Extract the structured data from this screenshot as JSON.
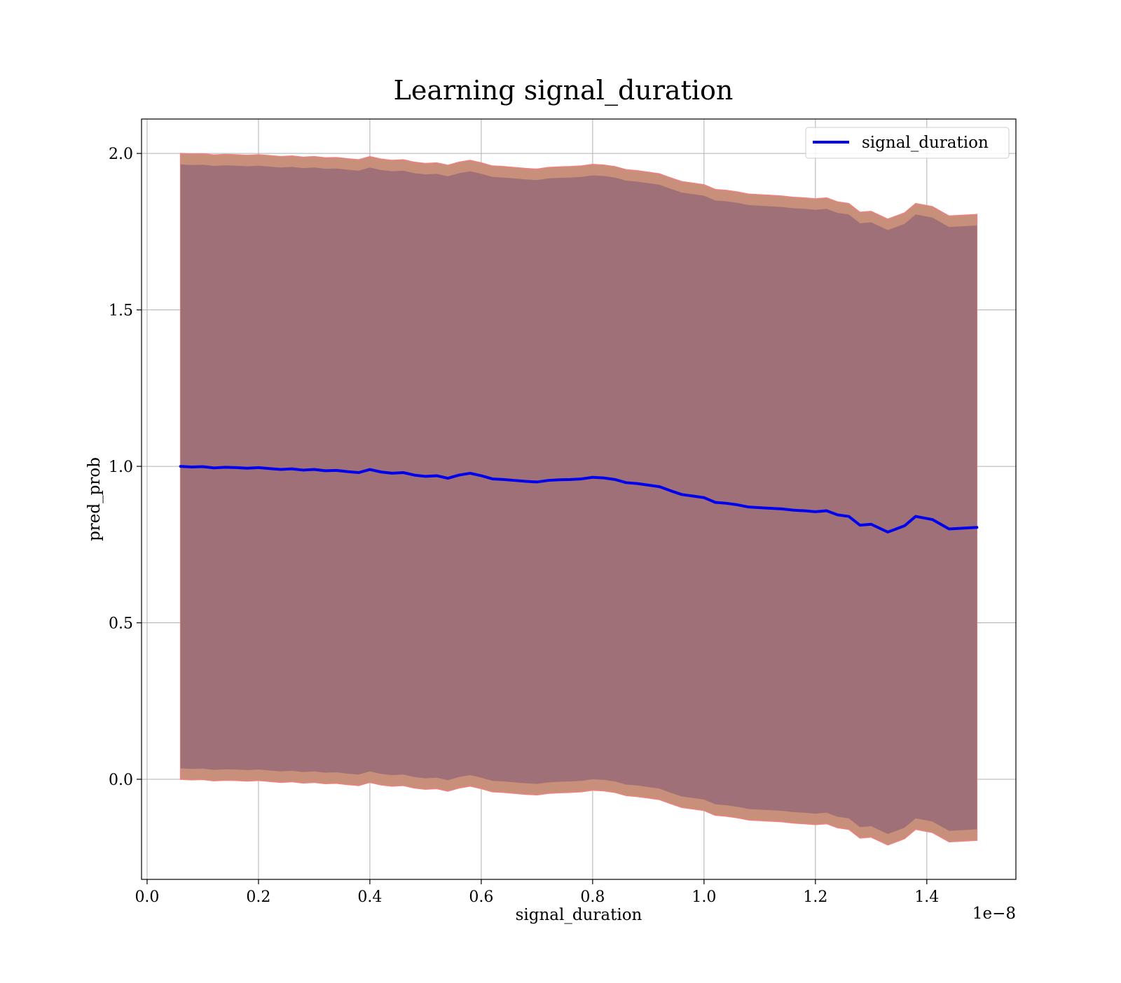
{
  "chart_data": {
    "type": "line",
    "title": "Learning signal_duration",
    "xlabel": "signal_duration",
    "ylabel": "pred_prob",
    "x_offset_label": "1e−8",
    "x_scale": 1e-08,
    "xlim": [
      -0.01,
      1.56
    ],
    "ylim": [
      -0.32,
      2.11
    ],
    "xticks": [
      0.0,
      0.2,
      0.4,
      0.6,
      0.8,
      1.0,
      1.2,
      1.4
    ],
    "xtick_labels": [
      "0.0",
      "0.2",
      "0.4",
      "0.6",
      "0.8",
      "1.0",
      "1.2",
      "1.4"
    ],
    "yticks": [
      0.0,
      0.5,
      1.0,
      1.5,
      2.0
    ],
    "ytick_labels": [
      "0.0",
      "0.5",
      "1.0",
      "1.5",
      "2.0"
    ],
    "grid": true,
    "legend": {
      "placement": "top-right",
      "entries": [
        "signal_duration"
      ]
    },
    "colors": {
      "line": "#0000ee",
      "outer_band": "#c8907a",
      "outer_band_edge": "#f08080",
      "inner_band": "#a07078",
      "grid": "#b0b0b0"
    },
    "x": [
      0.06,
      0.08,
      0.1,
      0.12,
      0.14,
      0.16,
      0.18,
      0.2,
      0.22,
      0.24,
      0.26,
      0.28,
      0.3,
      0.32,
      0.34,
      0.36,
      0.38,
      0.4,
      0.42,
      0.44,
      0.46,
      0.48,
      0.5,
      0.52,
      0.54,
      0.56,
      0.58,
      0.6,
      0.62,
      0.64,
      0.66,
      0.68,
      0.7,
      0.72,
      0.74,
      0.76,
      0.78,
      0.8,
      0.82,
      0.84,
      0.86,
      0.88,
      0.9,
      0.92,
      0.94,
      0.96,
      0.98,
      1.0,
      1.02,
      1.04,
      1.06,
      1.08,
      1.1,
      1.12,
      1.14,
      1.16,
      1.18,
      1.2,
      1.22,
      1.24,
      1.26,
      1.28,
      1.3,
      1.33,
      1.36,
      1.38,
      1.41,
      1.44,
      1.49
    ],
    "series": [
      {
        "name": "signal_duration",
        "values": [
          1.0,
          0.998,
          0.999,
          0.995,
          0.997,
          0.996,
          0.994,
          0.996,
          0.993,
          0.99,
          0.992,
          0.988,
          0.99,
          0.986,
          0.987,
          0.983,
          0.98,
          0.99,
          0.982,
          0.978,
          0.98,
          0.972,
          0.968,
          0.97,
          0.962,
          0.972,
          0.978,
          0.97,
          0.96,
          0.958,
          0.955,
          0.952,
          0.95,
          0.955,
          0.957,
          0.958,
          0.96,
          0.965,
          0.963,
          0.958,
          0.948,
          0.945,
          0.94,
          0.935,
          0.922,
          0.91,
          0.905,
          0.9,
          0.885,
          0.882,
          0.877,
          0.87,
          0.868,
          0.866,
          0.864,
          0.86,
          0.858,
          0.855,
          0.858,
          0.845,
          0.84,
          0.812,
          0.815,
          0.79,
          0.81,
          0.84,
          0.83,
          0.8,
          0.805
        ]
      }
    ]
  }
}
